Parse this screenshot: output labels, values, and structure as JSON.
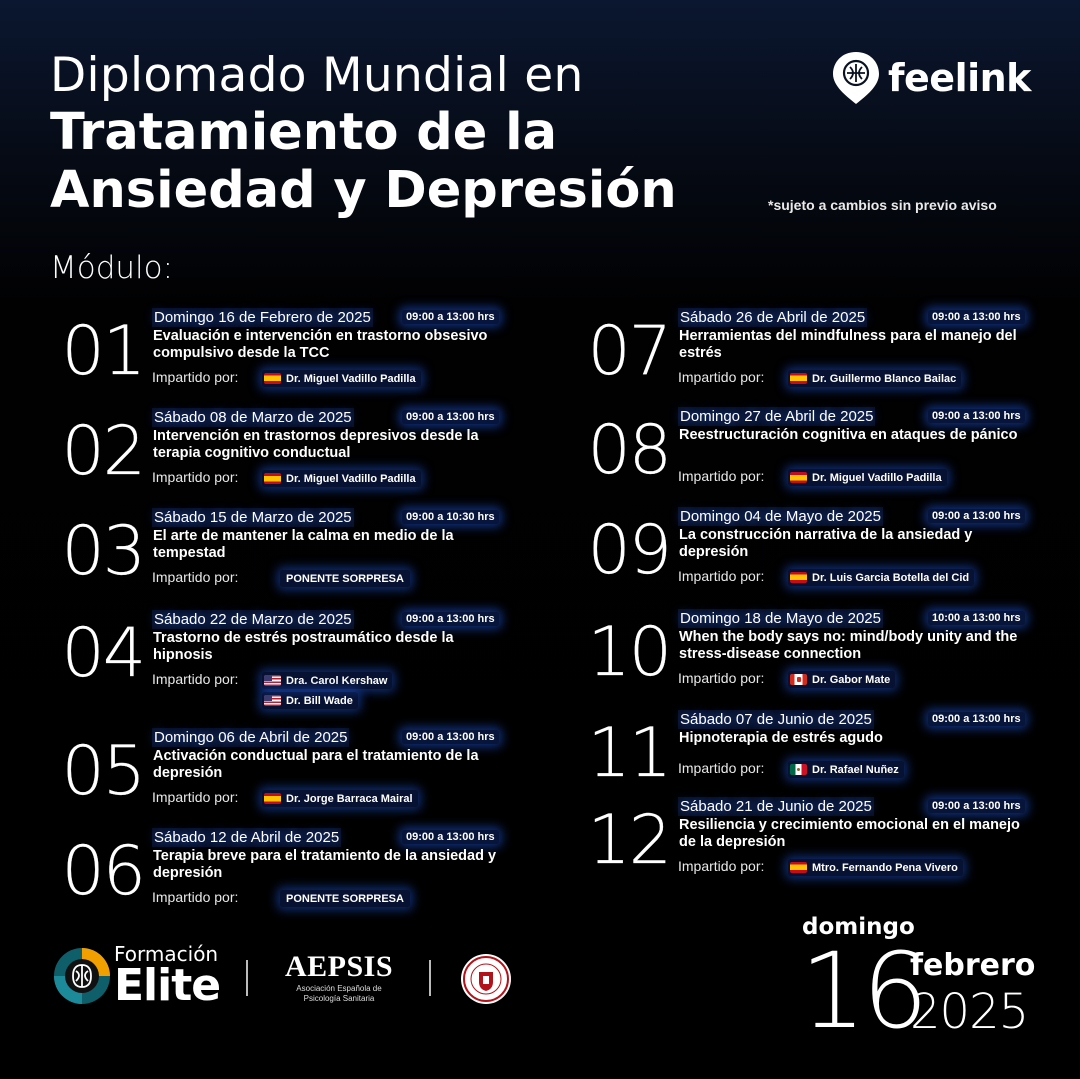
{
  "header": {
    "title_line1": "Diplomado Mundial en",
    "title_line2": "Tratamiento de la",
    "title_line3": "Ansiedad y Depresión",
    "disclaimer": "*sujeto a cambios sin previo aviso",
    "brand": "feelink"
  },
  "modulo_label": "Módulo:",
  "impartido_label": "Impartido por:",
  "modules": [
    {
      "num": "01",
      "date": "Domingo 16 de Febrero de 2025",
      "hours": "09:00 a 13:00 hrs",
      "topic": "Evaluación e intervención en trastorno obsesivo compulsivo desde la TCC",
      "speakers": [
        {
          "name": "Dr. Miguel Vadillo Padilla",
          "flag": "es"
        }
      ]
    },
    {
      "num": "02",
      "date": "Sábado 08 de Marzo de 2025",
      "hours": "09:00 a 13:00 hrs",
      "topic": "Intervención en trastornos depresivos desde la terapia cognitivo conductual",
      "speakers": [
        {
          "name": "Dr. Miguel Vadillo Padilla",
          "flag": "es"
        }
      ]
    },
    {
      "num": "03",
      "date": "Sábado 15 de Marzo de 2025",
      "hours": "09:00 a 10:30 hrs",
      "topic": "El arte de mantener la calma en medio de la tempestad",
      "speakers": [
        {
          "name": "PONENTE SORPRESA",
          "flag": ""
        }
      ]
    },
    {
      "num": "04",
      "date": "Sábado 22 de Marzo de 2025",
      "hours": "09:00 a 13:00 hrs",
      "topic": "Trastorno de estrés postraumático desde la hipnosis",
      "speakers": [
        {
          "name": "Dra. Carol Kershaw",
          "flag": "us"
        },
        {
          "name": "Dr. Bill Wade",
          "flag": "us"
        }
      ]
    },
    {
      "num": "05",
      "date": "Domingo 06 de Abril de 2025",
      "hours": "09:00 a 13:00 hrs",
      "topic": "Activación conductual para el tratamiento de la depresión",
      "speakers": [
        {
          "name": "Dr. Jorge Barraca Mairal",
          "flag": "es"
        }
      ]
    },
    {
      "num": "06",
      "date": "Sábado 12 de Abril de 2025",
      "hours": "09:00 a 13:00 hrs",
      "topic": "Terapia breve para el tratamiento de la ansiedad y depresión",
      "speakers": [
        {
          "name": "PONENTE SORPRESA",
          "flag": ""
        }
      ]
    },
    {
      "num": "07",
      "date": "Sábado 26 de Abril de 2025",
      "hours": "09:00 a 13:00 hrs",
      "topic": "Herramientas del mindfulness para el manejo del estrés",
      "speakers": [
        {
          "name": "Dr. Guillermo Blanco Bailac",
          "flag": "es"
        }
      ]
    },
    {
      "num": "08",
      "date": "Domingo 27 de Abril de 2025",
      "hours": "09:00 a 13:00 hrs",
      "topic": "Reestructuración cognitiva en ataques de pánico",
      "speakers": [
        {
          "name": "Dr. Miguel Vadillo Padilla",
          "flag": "es"
        }
      ]
    },
    {
      "num": "09",
      "date": "Domingo 04 de Mayo de 2025",
      "hours": "09:00 a 13:00 hrs",
      "topic": "La construcción narrativa de la ansiedad y depresión",
      "speakers": [
        {
          "name": "Dr. Luis Garcia Botella del Cid",
          "flag": "es"
        }
      ]
    },
    {
      "num": "10",
      "date": "Domingo 18 de Mayo de 2025",
      "hours": "10:00 a 13:00 hrs",
      "topic": "When the body says no: mind/body unity and the stress-disease connection",
      "speakers": [
        {
          "name": "Dr. Gabor Mate",
          "flag": "ca"
        }
      ]
    },
    {
      "num": "11",
      "date": "Sábado 07 de Junio de 2025",
      "hours": "09:00 a 13:00 hrs",
      "topic": "Hipnoterapia de estrés agudo",
      "speakers": [
        {
          "name": "Dr. Rafael Nuñez",
          "flag": "mx"
        }
      ]
    },
    {
      "num": "12",
      "date": "Sábado 21 de Junio de 2025",
      "hours": "09:00 a 13:00 hrs",
      "topic": "Resiliencia y crecimiento emocional en el manejo de la depresión",
      "speakers": [
        {
          "name": "Mtro. Fernando Pena Vivero",
          "flag": "es"
        }
      ]
    }
  ],
  "footer": {
    "formacion": "Formación",
    "elite": "Elite",
    "aepsis": "AEPSIS",
    "aepsis_sub": "Asociación Española de Psicología Sanitaria",
    "start_dow": "domingo",
    "start_day": "16",
    "start_month": "febrero",
    "start_year": "2025"
  }
}
